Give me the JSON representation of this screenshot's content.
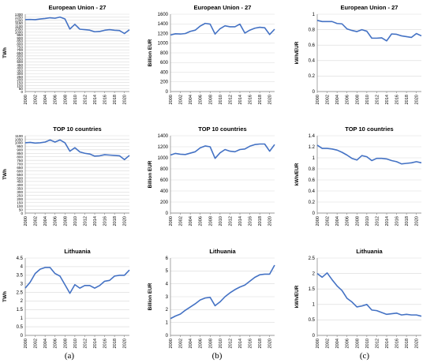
{
  "colors": {
    "line": "#4472C4",
    "grid": "#d9d9d9",
    "axis": "#7f7f7f",
    "text": "#000000"
  },
  "panel_labels": [
    "(a)",
    "(b)",
    "(c)"
  ],
  "chart_data": [
    {
      "type": "line",
      "title": "European Union - 27",
      "ylabel": "TWh",
      "x": [
        2000,
        2001,
        2002,
        2003,
        2004,
        2005,
        2006,
        2007,
        2008,
        2009,
        2010,
        2011,
        2012,
        2013,
        2014,
        2015,
        2016,
        2017,
        2018,
        2019,
        2020,
        2021
      ],
      "values": [
        1210,
        1212,
        1208,
        1220,
        1228,
        1240,
        1232,
        1252,
        1220,
        1050,
        1130,
        1048,
        1040,
        1032,
        1005,
        1010,
        1030,
        1040,
        1030,
        1025,
        975,
        1040
      ],
      "ylim": [
        0,
        1300
      ],
      "yticks": [
        0,
        50,
        100,
        150,
        200,
        250,
        300,
        350,
        400,
        450,
        500,
        550,
        600,
        650,
        700,
        750,
        800,
        850,
        900,
        950,
        1000,
        1050,
        1100,
        1150,
        1200,
        1250,
        1300
      ],
      "xticks": [
        "2000",
        "2002",
        "2004",
        "2006",
        "2008",
        "2010",
        "2012",
        "2014",
        "2016",
        "2018",
        "2020"
      ],
      "grid": true
    },
    {
      "type": "line",
      "title": "European Union - 27",
      "ylabel": "Billion EUR",
      "x": [
        2000,
        2001,
        2002,
        2003,
        2004,
        2005,
        2006,
        2007,
        2008,
        2009,
        2010,
        2011,
        2012,
        2013,
        2014,
        2015,
        2016,
        2017,
        2018,
        2019,
        2020,
        2021
      ],
      "values": [
        1170,
        1195,
        1190,
        1200,
        1245,
        1270,
        1355,
        1410,
        1395,
        1190,
        1300,
        1360,
        1340,
        1340,
        1395,
        1210,
        1270,
        1310,
        1330,
        1320,
        1180,
        1290
      ],
      "ylim": [
        0,
        1600
      ],
      "yticks": [
        0,
        200,
        400,
        600,
        800,
        1000,
        1200,
        1400,
        1600
      ],
      "xticks": [
        "2000",
        "2002",
        "2004",
        "2006",
        "2008",
        "2010",
        "2012",
        "2014",
        "2016",
        "2018",
        "2020"
      ],
      "grid": true
    },
    {
      "type": "line",
      "title": "European Union - 27",
      "ylabel": "kWh/EUR",
      "x": [
        2000,
        2001,
        2002,
        2003,
        2004,
        2005,
        2006,
        2007,
        2008,
        2009,
        2010,
        2011,
        2012,
        2013,
        2014,
        2015,
        2016,
        2017,
        2018,
        2019,
        2020,
        2021
      ],
      "values": [
        0.92,
        0.905,
        0.905,
        0.905,
        0.88,
        0.875,
        0.81,
        0.79,
        0.775,
        0.8,
        0.78,
        0.69,
        0.69,
        0.695,
        0.655,
        0.745,
        0.74,
        0.72,
        0.71,
        0.7,
        0.75,
        0.72
      ],
      "ylim": [
        0,
        1
      ],
      "yticks": [
        0,
        0.2,
        0.4,
        0.6,
        0.8,
        1
      ],
      "xticks": [
        "2000",
        "2002",
        "2004",
        "2006",
        "2008",
        "2010",
        "2012",
        "2014",
        "2016",
        "2018",
        "2020"
      ],
      "grid": true
    },
    {
      "type": "line",
      "title": "TOP 10 countries",
      "ylabel": "TWh",
      "x": [
        2000,
        2001,
        2002,
        2003,
        2004,
        2005,
        2006,
        2007,
        2008,
        2009,
        2010,
        2011,
        2012,
        2013,
        2014,
        2015,
        2016,
        2017,
        2018,
        2019,
        2020,
        2021
      ],
      "values": [
        1000,
        1005,
        995,
        1000,
        1010,
        1040,
        1010,
        1040,
        1000,
        880,
        930,
        870,
        850,
        840,
        810,
        815,
        830,
        825,
        820,
        815,
        760,
        820
      ],
      "ylim": [
        0,
        1100
      ],
      "yticks": [
        0,
        50,
        100,
        150,
        200,
        250,
        300,
        350,
        400,
        450,
        500,
        550,
        600,
        650,
        700,
        750,
        800,
        850,
        900,
        950,
        1000,
        1050,
        1100
      ],
      "xticks": [
        "2000",
        "2002",
        "2004",
        "2006",
        "2008",
        "2010",
        "2012",
        "2014",
        "2016",
        "2018",
        "2020"
      ],
      "grid": true
    },
    {
      "type": "line",
      "title": "TOP 10 countries",
      "ylabel": "Billion EUR",
      "x": [
        2000,
        2001,
        2002,
        2003,
        2004,
        2005,
        2006,
        2007,
        2008,
        2009,
        2010,
        2011,
        2012,
        2013,
        2014,
        2015,
        2016,
        2017,
        2018,
        2019,
        2020,
        2021
      ],
      "values": [
        1050,
        1080,
        1065,
        1060,
        1085,
        1110,
        1180,
        1215,
        1200,
        990,
        1090,
        1150,
        1120,
        1110,
        1150,
        1160,
        1210,
        1240,
        1250,
        1250,
        1120,
        1240
      ],
      "ylim": [
        0,
        1400
      ],
      "yticks": [
        0,
        200,
        400,
        600,
        800,
        1000,
        1200,
        1400
      ],
      "xticks": [
        "2000",
        "2002",
        "2004",
        "2006",
        "2008",
        "2010",
        "2012",
        "2014",
        "2016",
        "2018",
        "2020"
      ],
      "grid": true
    },
    {
      "type": "line",
      "title": "TOP 10 countries",
      "ylabel": "kWh/EUR",
      "x": [
        2000,
        2001,
        2002,
        2003,
        2004,
        2005,
        2006,
        2007,
        2008,
        2009,
        2010,
        2011,
        2012,
        2013,
        2014,
        2015,
        2016,
        2017,
        2018,
        2019,
        2020,
        2021
      ],
      "values": [
        1.23,
        1.17,
        1.17,
        1.16,
        1.14,
        1.1,
        1.05,
        0.99,
        0.96,
        1.04,
        1.02,
        0.95,
        0.99,
        0.99,
        0.98,
        0.95,
        0.93,
        0.89,
        0.9,
        0.91,
        0.93,
        0.91
      ],
      "ylim": [
        0,
        1.4
      ],
      "yticks": [
        0,
        0.2,
        0.4,
        0.6,
        0.8,
        1,
        1.2,
        1.4
      ],
      "xticks": [
        "2000",
        "2002",
        "2004",
        "2006",
        "2008",
        "2010",
        "2012",
        "2014",
        "2016",
        "2018",
        "2020"
      ],
      "grid": true
    },
    {
      "type": "line",
      "title": "Lithuania",
      "ylabel": "TWh",
      "x": [
        2000,
        2001,
        2002,
        2003,
        2004,
        2005,
        2006,
        2007,
        2008,
        2009,
        2010,
        2011,
        2012,
        2013,
        2014,
        2015,
        2016,
        2017,
        2018,
        2019,
        2020,
        2021
      ],
      "values": [
        2.75,
        3.1,
        3.6,
        3.85,
        3.95,
        3.95,
        3.6,
        3.45,
        2.95,
        2.45,
        2.95,
        2.75,
        2.9,
        2.9,
        2.75,
        2.9,
        3.15,
        3.2,
        3.45,
        3.5,
        3.5,
        3.8
      ],
      "ylim": [
        0,
        4.5
      ],
      "yticks": [
        0,
        0.5,
        1,
        1.5,
        2,
        2.5,
        3,
        3.5,
        4,
        4.5
      ],
      "xticks": [
        "2000",
        "2002",
        "2004",
        "2006",
        "2008",
        "2010",
        "2012",
        "2014",
        "2016",
        "2018",
        "2020"
      ],
      "grid": true
    },
    {
      "type": "line",
      "title": "Lithuania",
      "ylabel": "Billion EUR",
      "x": [
        2000,
        2001,
        2002,
        2003,
        2004,
        2005,
        2006,
        2007,
        2008,
        2009,
        2010,
        2011,
        2012,
        2013,
        2014,
        2015,
        2016,
        2017,
        2018,
        2019,
        2020,
        2021
      ],
      "values": [
        1.3,
        1.5,
        1.65,
        1.95,
        2.2,
        2.45,
        2.75,
        2.9,
        2.95,
        2.3,
        2.6,
        3.0,
        3.3,
        3.55,
        3.75,
        3.9,
        4.2,
        4.5,
        4.7,
        4.75,
        4.75,
        5.45
      ],
      "ylim": [
        0,
        6
      ],
      "yticks": [
        0,
        1,
        2,
        3,
        4,
        5,
        6
      ],
      "xticks": [
        "2000",
        "2002",
        "2004",
        "2006",
        "2008",
        "2010",
        "2012",
        "2014",
        "2016",
        "2018",
        "2020"
      ],
      "grid": true
    },
    {
      "type": "line",
      "title": "Lithuania",
      "ylabel": "kWh/EUR",
      "x": [
        2000,
        2001,
        2002,
        2003,
        2004,
        2005,
        2006,
        2007,
        2008,
        2009,
        2010,
        2011,
        2012,
        2013,
        2014,
        2015,
        2016,
        2017,
        2018,
        2019,
        2020,
        2021
      ],
      "values": [
        2.0,
        1.88,
        2.02,
        1.8,
        1.6,
        1.45,
        1.2,
        1.08,
        0.92,
        0.95,
        1.0,
        0.82,
        0.8,
        0.74,
        0.68,
        0.7,
        0.72,
        0.66,
        0.68,
        0.66,
        0.66,
        0.62
      ],
      "ylim": [
        0,
        2.5
      ],
      "yticks": [
        0,
        0.5,
        1,
        1.5,
        2,
        2.5
      ],
      "xticks": [
        "2000",
        "2002",
        "2004",
        "2006",
        "2008",
        "2010",
        "2012",
        "2014",
        "2016",
        "2018",
        "2020"
      ],
      "grid": true
    }
  ]
}
